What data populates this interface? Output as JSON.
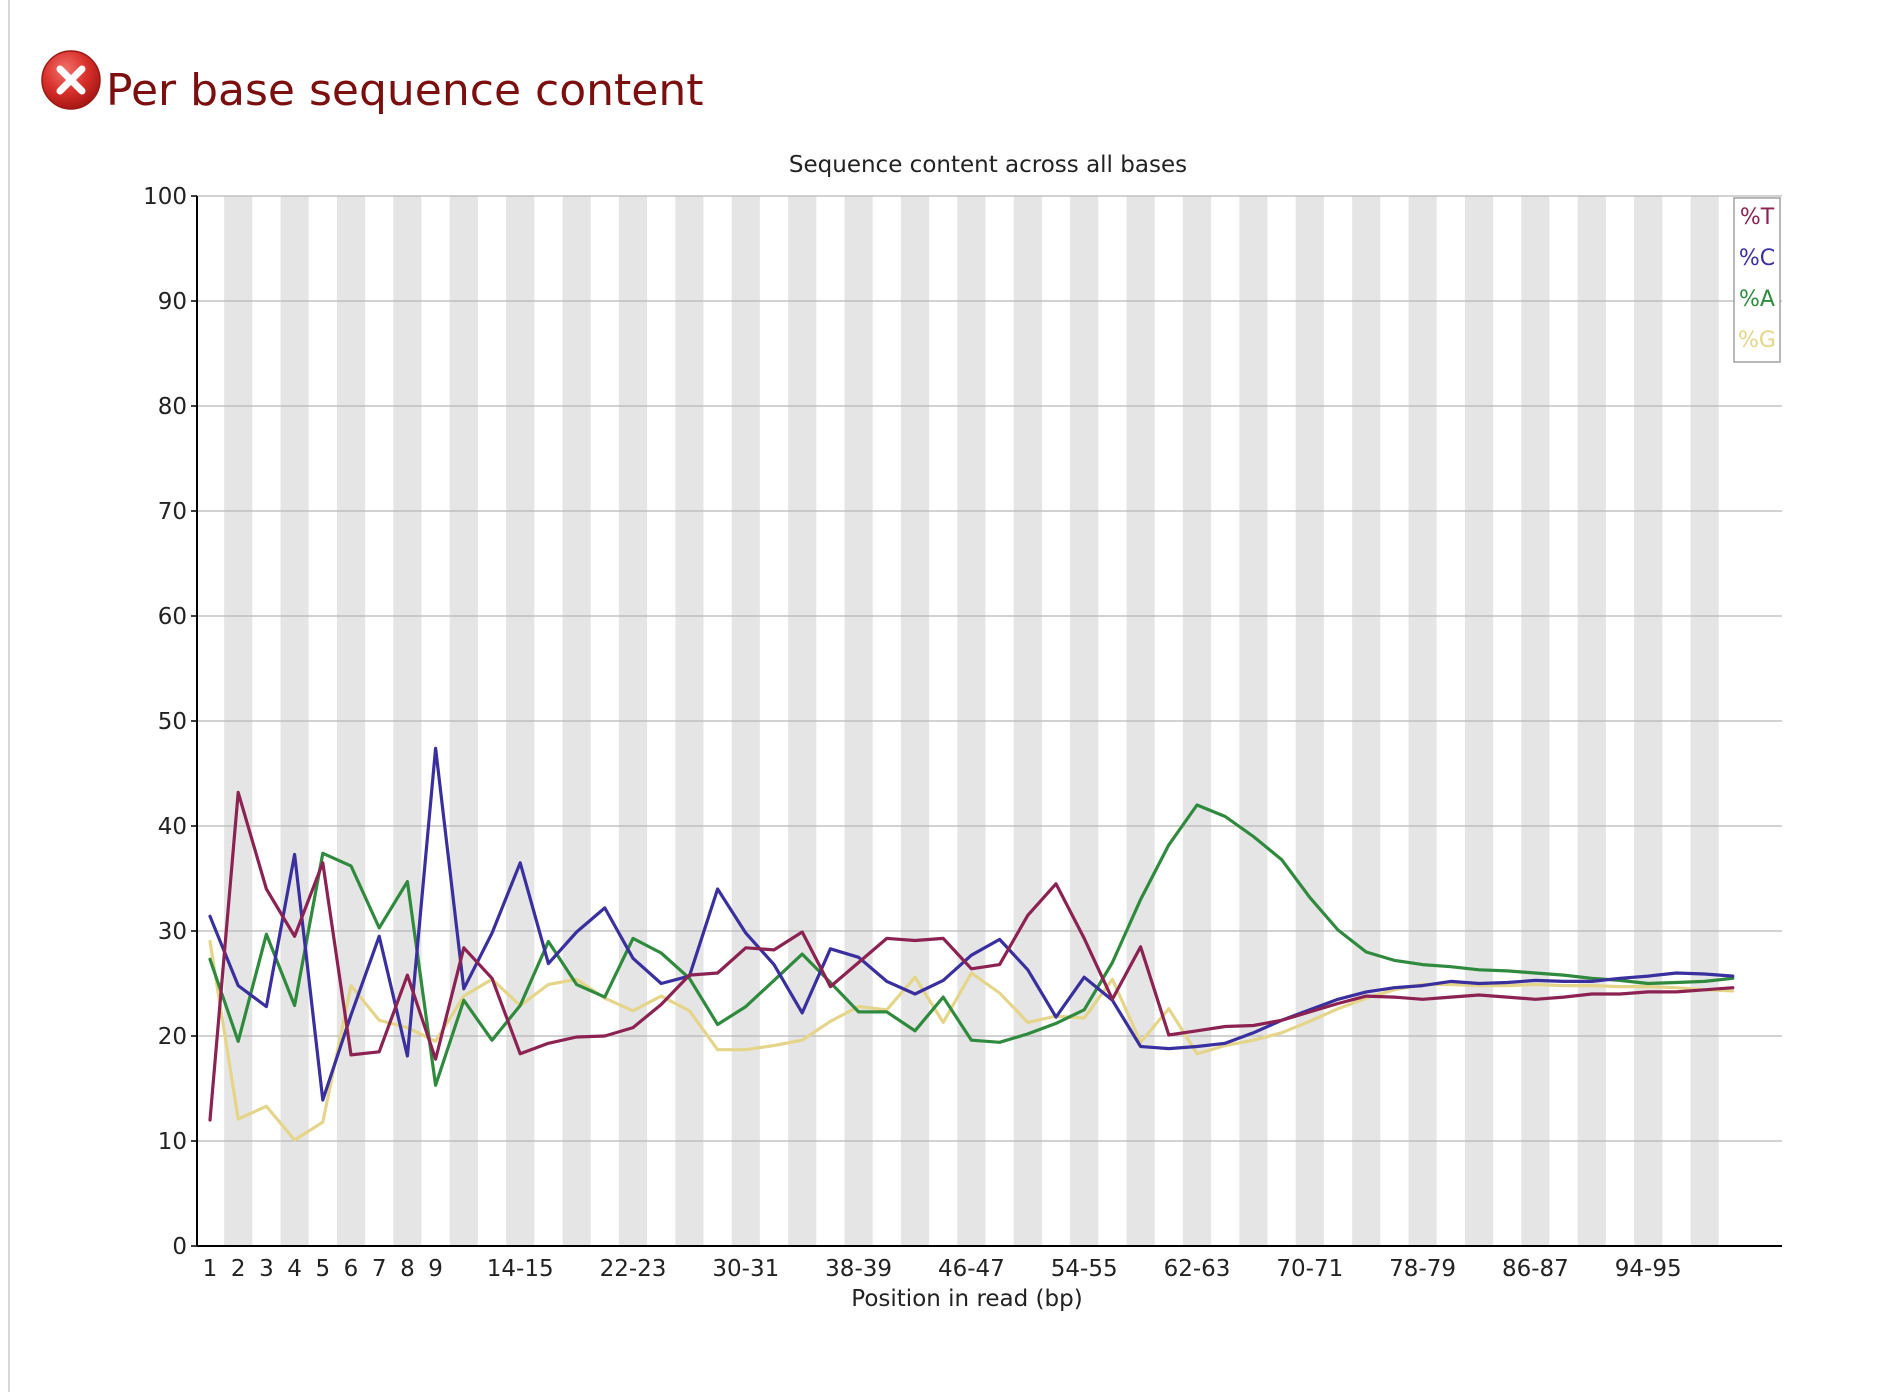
{
  "module": {
    "title": "Per base sequence content",
    "status_icon": "fail-cross-icon",
    "status_color": "#d9302c"
  },
  "chart_data": {
    "type": "line",
    "title": "Sequence content across all bases",
    "xlabel": "Position in read (bp)",
    "ylabel": "",
    "ylim": [
      0,
      100
    ],
    "yticks": [
      0,
      10,
      20,
      30,
      40,
      50,
      60,
      70,
      80,
      90,
      100
    ],
    "grid": true,
    "legend_position": "top-right",
    "categories": [
      "1",
      "2",
      "3",
      "4",
      "5",
      "6",
      "7",
      "8",
      "9",
      "10-11",
      "12-13",
      "14-15",
      "16-17",
      "18-19",
      "20-21",
      "22-23",
      "24-25",
      "26-27",
      "28-29",
      "30-31",
      "32-33",
      "34-35",
      "36-37",
      "38-39",
      "40-41",
      "42-43",
      "44-45",
      "46-47",
      "48-49",
      "50-51",
      "52-53",
      "54-55",
      "56-57",
      "58-59",
      "60-61",
      "62-63",
      "64-65",
      "66-67",
      "68-69",
      "70-71",
      "72-73",
      "74-75",
      "76-77",
      "78-79",
      "80-81",
      "82-83",
      "84-85",
      "86-87",
      "88-89",
      "90-91",
      "92-93",
      "94-95",
      "96-97",
      "98-99",
      "100-101"
    ],
    "tick_labels": [
      "1",
      "2",
      "3",
      "4",
      "5",
      "6",
      "7",
      "8",
      "9",
      "",
      "",
      "14-15",
      "",
      "",
      "",
      "22-23",
      "",
      "",
      "",
      "30-31",
      "",
      "",
      "",
      "38-39",
      "",
      "",
      "",
      "46-47",
      "",
      "",
      "",
      "54-55",
      "",
      "",
      "",
      "62-63",
      "",
      "",
      "",
      "70-71",
      "",
      "",
      "",
      "78-79",
      "",
      "",
      "",
      "86-87",
      "",
      "",
      "",
      "94-95",
      "",
      "",
      ""
    ],
    "series": [
      {
        "name": "%T",
        "color": "#8b2252",
        "values": [
          12.0,
          43.2,
          34.0,
          29.5,
          36.5,
          18.2,
          18.5,
          25.8,
          17.8,
          28.4,
          25.5,
          18.3,
          19.3,
          19.9,
          20.0,
          20.8,
          23.0,
          25.8,
          26.0,
          28.4,
          28.2,
          29.9,
          24.7,
          27.0,
          29.3,
          29.1,
          29.3,
          26.4,
          26.8,
          31.5,
          34.5,
          29.3,
          23.5,
          28.5,
          20.1,
          20.5,
          20.9,
          21.0,
          21.5,
          22.3,
          23.1,
          23.8,
          23.7,
          23.5,
          23.7,
          23.9,
          23.7,
          23.5,
          23.7,
          24.0,
          24.0,
          24.2,
          24.2,
          24.4,
          24.6
        ]
      },
      {
        "name": "%C",
        "color": "#3a2f9e",
        "values": [
          31.4,
          24.8,
          22.8,
          37.3,
          13.9,
          22.0,
          29.5,
          18.1,
          47.4,
          24.5,
          29.8,
          36.5,
          26.9,
          29.9,
          32.2,
          27.4,
          25.0,
          25.7,
          34.0,
          29.8,
          26.8,
          22.2,
          28.3,
          27.5,
          25.2,
          24.0,
          25.3,
          27.7,
          29.2,
          26.3,
          21.8,
          25.6,
          23.4,
          19.0,
          18.8,
          19.0,
          19.3,
          20.3,
          21.5,
          22.5,
          23.5,
          24.2,
          24.6,
          24.8,
          25.2,
          25.0,
          25.1,
          25.3,
          25.2,
          25.2,
          25.5,
          25.7,
          26.0,
          25.9,
          25.7
        ]
      },
      {
        "name": "%A",
        "color": "#2f8a3e",
        "values": [
          27.3,
          19.5,
          29.7,
          22.9,
          37.4,
          36.2,
          30.3,
          34.7,
          15.3,
          23.4,
          19.6,
          22.9,
          29.0,
          24.9,
          23.7,
          29.3,
          27.9,
          25.5,
          21.1,
          22.8,
          25.3,
          27.8,
          25.1,
          22.3,
          22.3,
          20.5,
          23.7,
          19.6,
          19.4,
          20.2,
          21.2,
          22.5,
          27.0,
          33.0,
          38.2,
          42.0,
          40.9,
          39.0,
          36.8,
          33.2,
          30.1,
          28.0,
          27.2,
          26.8,
          26.6,
          26.3,
          26.2,
          26.0,
          25.8,
          25.5,
          25.3,
          25.0,
          25.1,
          25.2,
          25.5
        ]
      },
      {
        "name": "%G",
        "color": "#e5d58a",
        "values": [
          29.0,
          12.1,
          13.3,
          10.1,
          11.8,
          24.8,
          21.5,
          20.8,
          19.5,
          23.8,
          25.4,
          22.9,
          24.9,
          25.4,
          23.6,
          22.4,
          23.8,
          22.4,
          18.7,
          18.7,
          19.1,
          19.6,
          21.4,
          22.8,
          22.5,
          25.6,
          21.3,
          26.0,
          24.1,
          21.3,
          21.9,
          21.7,
          25.4,
          19.4,
          22.6,
          18.3,
          19.1,
          19.6,
          20.3,
          21.4,
          22.6,
          23.6,
          24.4,
          24.9,
          24.9,
          24.8,
          24.8,
          24.9,
          24.8,
          24.8,
          24.7,
          24.7,
          24.6,
          24.4,
          24.3
        ]
      }
    ]
  }
}
